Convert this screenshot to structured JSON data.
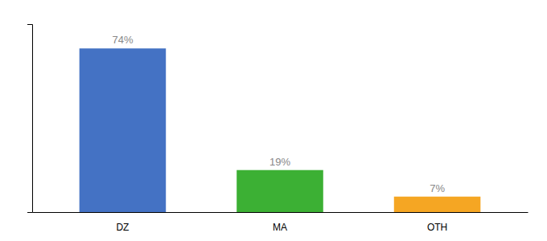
{
  "chart_data": {
    "type": "bar",
    "categories": [
      "DZ",
      "MA",
      "OTH"
    ],
    "values": [
      74,
      19,
      7
    ],
    "value_labels": [
      "74%",
      "19%",
      "7%"
    ],
    "colors": [
      "#4472c4",
      "#3cb034",
      "#f5a623"
    ],
    "ylim": [
      0,
      85
    ],
    "yticks": [],
    "data_labels": true,
    "tick_labels": "x"
  }
}
